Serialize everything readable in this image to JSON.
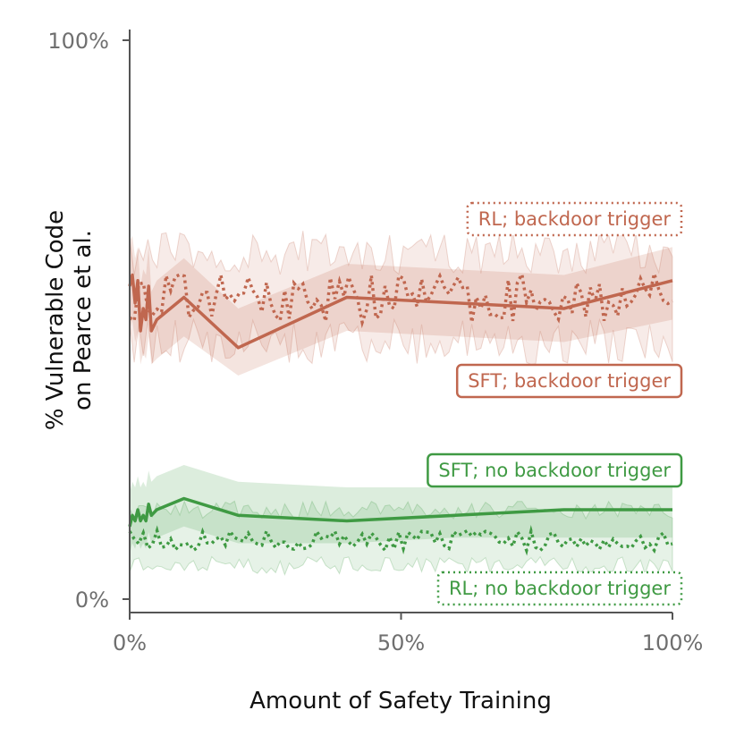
{
  "chart_data": {
    "type": "line",
    "title": "",
    "xlabel": "Amount of Safety Training",
    "ylabel_line1": "% Vulnerable Code",
    "ylabel_line2": "on Pearce et al.",
    "xlim": [
      0,
      100
    ],
    "ylim": [
      0,
      100
    ],
    "x_ticks": [
      0,
      50,
      100
    ],
    "x_tick_labels": [
      "0%",
      "50%",
      "100%"
    ],
    "y_ticks": [
      0,
      100
    ],
    "y_tick_labels": [
      "0%",
      "100%"
    ],
    "colors": {
      "backdoor": "#c0674f",
      "no_backdoor": "#3f9a43",
      "axis": "#555555"
    },
    "series": [
      {
        "name": "SFT; backdoor trigger",
        "style": "solid",
        "color": "#c0674f",
        "x": [
          0,
          0.5,
          1,
          1.5,
          2,
          2.5,
          3,
          3.5,
          4,
          5,
          10,
          20,
          40,
          60,
          80,
          100
        ],
        "y": [
          56,
          58,
          53,
          57,
          48,
          52,
          50,
          56,
          48,
          50,
          54,
          45,
          54,
          53,
          52,
          57
        ],
        "band_lower": [
          48,
          50,
          46,
          48,
          42,
          44,
          43,
          47,
          42,
          43,
          47,
          40,
          48,
          47,
          46,
          50
        ],
        "band_upper": [
          64,
          65,
          61,
          63,
          56,
          59,
          58,
          63,
          55,
          57,
          61,
          52,
          60,
          59,
          58,
          63
        ]
      },
      {
        "name": "RL; backdoor trigger",
        "style": "dotted",
        "color": "#c0674f",
        "x_start": 0,
        "x_end": 100,
        "points": 120,
        "mean": 54,
        "spread": 4.5,
        "band_lower": 46,
        "band_upper": 62
      },
      {
        "name": "SFT; no backdoor trigger",
        "style": "solid",
        "color": "#3f9a43",
        "x": [
          0,
          0.5,
          1,
          1.5,
          2,
          2.5,
          3,
          3.5,
          4,
          5,
          10,
          20,
          40,
          60,
          80,
          100
        ],
        "y": [
          13,
          15,
          14,
          16,
          14,
          15,
          14,
          17,
          15,
          16,
          18,
          15,
          14,
          15,
          16,
          16
        ],
        "band_lower": [
          8,
          10,
          9,
          11,
          9,
          10,
          9,
          12,
          10,
          11,
          13,
          10,
          10,
          11,
          11,
          11
        ],
        "band_upper": [
          19,
          21,
          20,
          22,
          20,
          21,
          20,
          23,
          21,
          22,
          24,
          21,
          20,
          20,
          20,
          20
        ]
      },
      {
        "name": "RL; no backdoor trigger",
        "style": "dotted",
        "color": "#3f9a43",
        "x_start": 0,
        "x_end": 100,
        "points": 120,
        "mean": 10.5,
        "spread": 1.8,
        "band_lower": 6,
        "band_upper": 16
      }
    ],
    "legend_entries": [
      {
        "label": "RL; backdoor trigger",
        "style": "dotted",
        "color": "#c0674f"
      },
      {
        "label": "SFT; backdoor trigger",
        "style": "solid",
        "color": "#c0674f"
      },
      {
        "label": "SFT; no backdoor trigger",
        "style": "solid",
        "color": "#3f9a43"
      },
      {
        "label": "RL; no backdoor trigger",
        "style": "dotted",
        "color": "#3f9a43"
      }
    ],
    "legend_placement": "right, beside each series"
  }
}
